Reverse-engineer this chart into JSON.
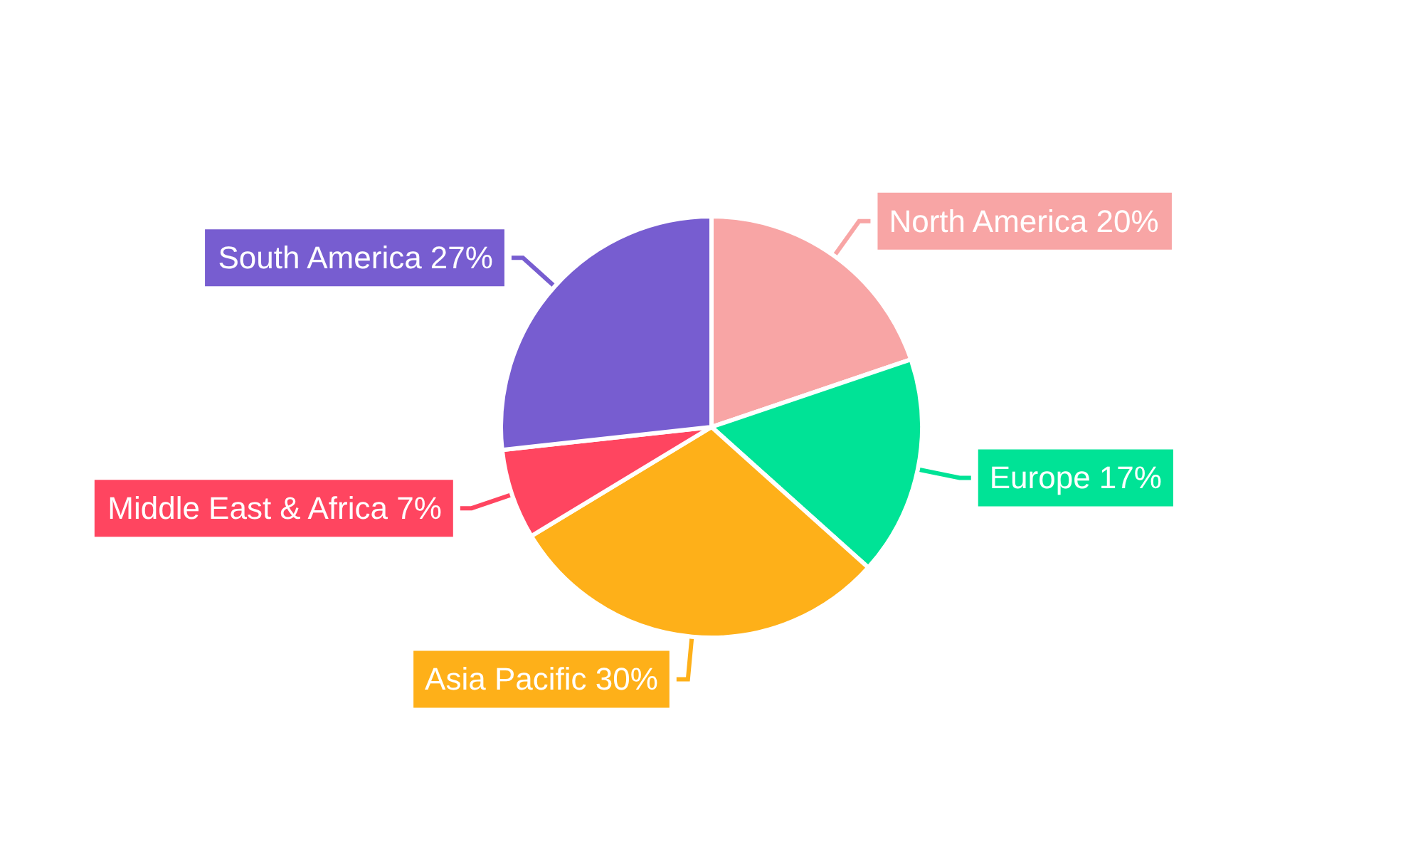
{
  "chart_data": {
    "type": "pie",
    "categories": [
      "North America",
      "Europe",
      "Asia Pacific",
      "Middle East & Africa",
      "South America"
    ],
    "values": [
      20,
      17,
      30,
      7,
      27
    ],
    "value_labels": [
      "20%",
      "17%",
      "30%",
      "7%",
      "27%"
    ],
    "colors": [
      "#f8a5a5",
      "#00e396",
      "#feb019",
      "#ff4560",
      "#775dd0"
    ],
    "legend": false
  }
}
